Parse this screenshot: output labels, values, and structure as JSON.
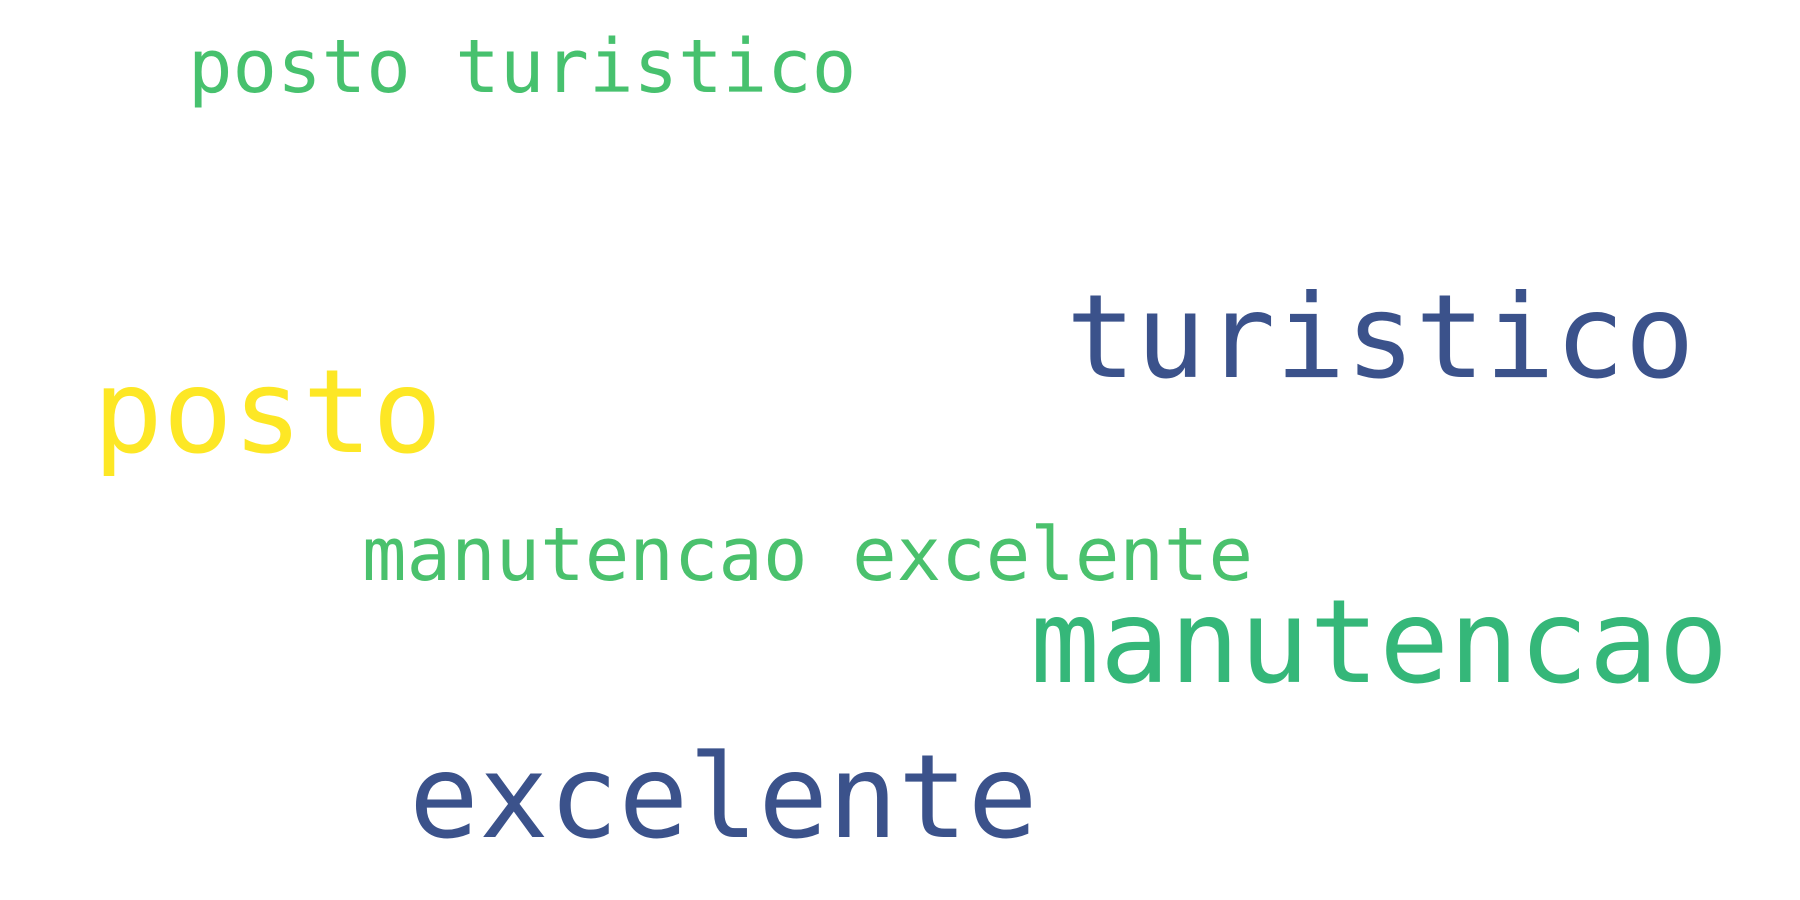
{
  "wordcloud": {
    "words": [
      {
        "text": "posto turistico",
        "color": "#47c16e"
      },
      {
        "text": "turistico",
        "color": "#3b528b"
      },
      {
        "text": "posto",
        "color": "#fde725"
      },
      {
        "text": "manutencao excelente",
        "color": "#4ac16d"
      },
      {
        "text": "manutencao",
        "color": "#35b779"
      },
      {
        "text": "excelente",
        "color": "#3b528b"
      }
    ]
  }
}
